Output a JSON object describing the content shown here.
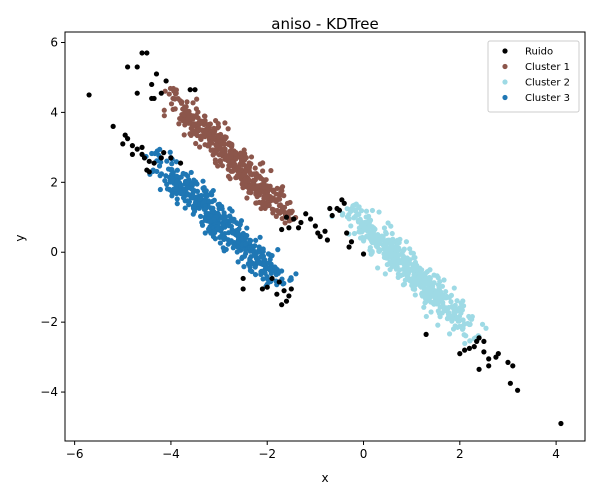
{
  "chart_data": {
    "type": "scatter",
    "title": "aniso - KDTree",
    "xlabel": "x",
    "ylabel": "y",
    "xlim": [
      -6.2,
      4.6
    ],
    "ylim": [
      -5.4,
      6.3
    ],
    "xticks": [
      -6,
      -4,
      -2,
      0,
      2,
      4
    ],
    "yticks": [
      -4,
      -2,
      0,
      2,
      4,
      6
    ],
    "xtick_labels": [
      "−6",
      "−4",
      "−2",
      "0",
      "2",
      "4"
    ],
    "ytick_labels": [
      "−4",
      "−2",
      "0",
      "2",
      "4",
      "6"
    ],
    "grid": false,
    "legend_position": "top-right",
    "series": [
      {
        "name": "Ruido",
        "color": "#000000",
        "points": [
          [
            -5.7,
            4.5
          ],
          [
            -4.9,
            5.3
          ],
          [
            -4.7,
            5.3
          ],
          [
            -4.6,
            5.7
          ],
          [
            -4.5,
            5.7
          ],
          [
            -4.3,
            5.1
          ],
          [
            -4.1,
            4.9
          ],
          [
            -4.4,
            4.8
          ],
          [
            -4.7,
            4.55
          ],
          [
            -4.4,
            4.4
          ],
          [
            -4.35,
            4.4
          ],
          [
            -3.6,
            4.65
          ],
          [
            -3.5,
            4.65
          ],
          [
            -4.2,
            4.55
          ],
          [
            -5.2,
            3.6
          ],
          [
            -4.95,
            3.35
          ],
          [
            -4.9,
            3.25
          ],
          [
            -5.0,
            3.1
          ],
          [
            -4.8,
            3.05
          ],
          [
            -4.7,
            2.95
          ],
          [
            -4.6,
            2.8
          ],
          [
            -4.55,
            2.7
          ],
          [
            -4.45,
            2.6
          ],
          [
            -4.35,
            2.55
          ],
          [
            -4.5,
            2.35
          ],
          [
            -4.2,
            2.7
          ],
          [
            -4.0,
            2.7
          ],
          [
            -3.8,
            2.55
          ],
          [
            -4.45,
            2.3
          ],
          [
            -4.15,
            2.85
          ],
          [
            -4.6,
            3.0
          ],
          [
            -4.8,
            2.8
          ],
          [
            -1.6,
            1.0
          ],
          [
            -1.45,
            0.95
          ],
          [
            -1.3,
            0.85
          ],
          [
            -1.1,
            0.95
          ],
          [
            -0.95,
            0.55
          ],
          [
            -0.9,
            0.45
          ],
          [
            -0.75,
            0.35
          ],
          [
            -0.65,
            1.05
          ],
          [
            -0.5,
            1.2
          ],
          [
            -0.4,
            1.4
          ],
          [
            -0.45,
            1.5
          ],
          [
            -0.55,
            1.25
          ],
          [
            -1.7,
            0.65
          ],
          [
            -1.55,
            0.7
          ],
          [
            -1.2,
            1.1
          ],
          [
            -0.8,
            0.6
          ],
          [
            -0.35,
            0.55
          ],
          [
            -0.25,
            0.3
          ],
          [
            -1.0,
            0.75
          ],
          [
            -1.35,
            0.7
          ],
          [
            -0.7,
            1.25
          ],
          [
            -2.0,
            -1.0
          ],
          [
            -1.8,
            -1.2
          ],
          [
            -1.6,
            -1.4
          ],
          [
            -1.55,
            -1.25
          ],
          [
            -1.7,
            -1.5
          ],
          [
            -1.9,
            -0.75
          ],
          [
            -2.1,
            -1.05
          ],
          [
            -1.75,
            -0.85
          ],
          [
            -1.5,
            -1.05
          ],
          [
            -2.5,
            -1.05
          ],
          [
            -2.5,
            -0.75
          ],
          [
            -1.65,
            -1.1
          ],
          [
            0.0,
            -0.05
          ],
          [
            -0.3,
            0.15
          ],
          [
            1.3,
            -2.35
          ],
          [
            2.0,
            -2.9
          ],
          [
            2.1,
            -2.8
          ],
          [
            2.2,
            -2.75
          ],
          [
            2.3,
            -2.7
          ],
          [
            2.35,
            -2.55
          ],
          [
            2.4,
            -2.45
          ],
          [
            2.5,
            -2.85
          ],
          [
            2.4,
            -3.35
          ],
          [
            2.6,
            -3.25
          ],
          [
            2.6,
            -3.05
          ],
          [
            2.75,
            -3.0
          ],
          [
            2.8,
            -2.9
          ],
          [
            2.5,
            -2.55
          ],
          [
            3.0,
            -3.15
          ],
          [
            3.1,
            -3.25
          ],
          [
            3.05,
            -3.75
          ],
          [
            3.2,
            -3.95
          ],
          [
            4.1,
            -4.9
          ]
        ]
      },
      {
        "name": "Cluster 1",
        "color": "#8c564b",
        "generator": {
          "seed": 11,
          "count": 480,
          "start": [
            -4.05,
            4.55
          ],
          "end": [
            -1.55,
            1.0
          ],
          "spread": 0.16
        }
      },
      {
        "name": "Cluster 2",
        "color": "#9edae5",
        "generator": {
          "seed": 23,
          "count": 480,
          "start": [
            -0.25,
            1.2
          ],
          "end": [
            2.25,
            -2.4
          ],
          "spread": 0.17
        }
      },
      {
        "name": "Cluster 3",
        "color": "#1f77b4",
        "generator": {
          "seed": 37,
          "count": 480,
          "start": [
            -4.35,
            2.75
          ],
          "end": [
            -1.75,
            -0.85
          ],
          "spread": 0.17
        }
      }
    ]
  }
}
